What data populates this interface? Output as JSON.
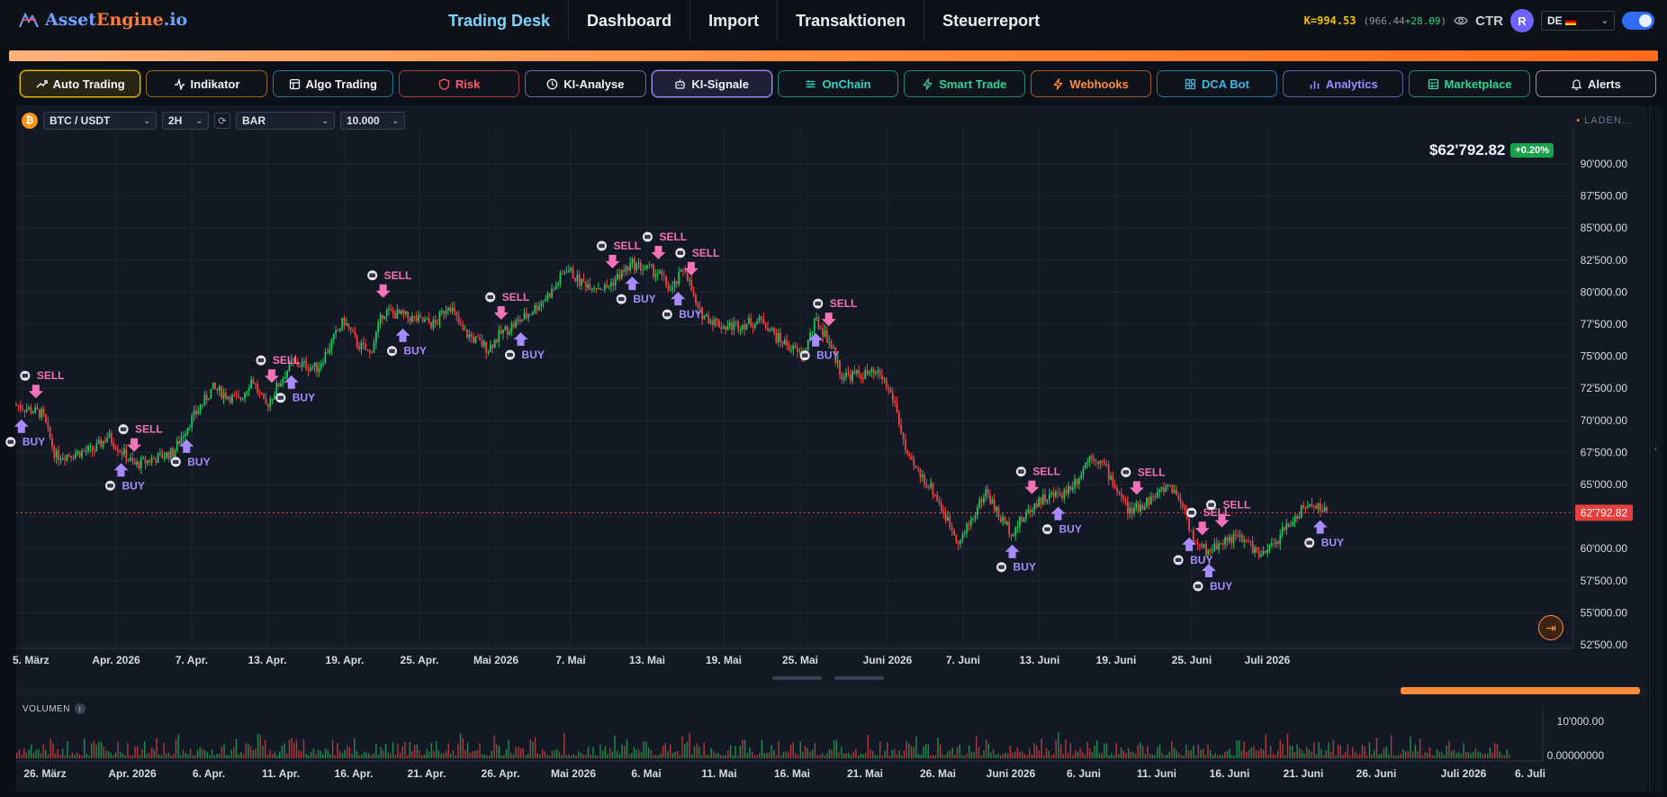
{
  "app": {
    "brand_part1": "Asset",
    "brand_part2": "Engine",
    "brand_part3": ".io"
  },
  "nav": {
    "items": [
      "Trading Desk",
      "Dashboard",
      "Import",
      "Transaktionen",
      "Steuerreport"
    ],
    "active": "Trading Desk"
  },
  "topbar_right": {
    "k_value": "K=994.53",
    "k_sub_base": "(966.44",
    "k_sub_delta": "+28.09",
    "k_sub_close": ")",
    "ctr_label": "CTR",
    "avatar_initial": "R",
    "language": "DE"
  },
  "features": [
    {
      "label": "Auto Trading",
      "icon": "trending-up-icon",
      "color": "#f0c000",
      "active": true
    },
    {
      "label": "Indikator",
      "icon": "activity-icon",
      "color": "#f4a020"
    },
    {
      "label": "Algo Trading",
      "icon": "layout-icon",
      "color": "#3fb6e8"
    },
    {
      "label": "Risk",
      "icon": "shield-icon",
      "color": "#ff5a6a"
    },
    {
      "label": "KI-Analyse",
      "icon": "clock-icon",
      "color": "#b79cff"
    },
    {
      "label": "KI-Signale",
      "icon": "robot-icon",
      "color": "#a58bff",
      "active": true
    },
    {
      "label": "OnChain",
      "icon": "sliders-icon",
      "color": "#2fd3c0"
    },
    {
      "label": "Smart Trade",
      "icon": "bolt-icon",
      "color": "#34d399"
    },
    {
      "label": "Webhooks",
      "icon": "bolt-icon",
      "color": "#ff8a3a"
    },
    {
      "label": "DCA Bot",
      "icon": "grid-icon",
      "color": "#3fb6e8"
    },
    {
      "label": "Analytics",
      "icon": "bar-chart-icon",
      "color": "#9b8cff"
    },
    {
      "label": "Marketplace",
      "icon": "table-icon",
      "color": "#34d399"
    },
    {
      "label": "Alerts",
      "icon": "bell-icon",
      "color": "#e6e9ef"
    }
  ],
  "chart_toolbar": {
    "pair": "BTC / USDT",
    "interval": "2H",
    "style": "BAR",
    "count": "10.000",
    "status": "LADEN..."
  },
  "price": {
    "last": "$62'792.82",
    "change": "+0.20%",
    "line_label": "62'792.82"
  },
  "chart_data": {
    "type": "candlestick",
    "pair": "BTC / USDT",
    "y_ticks": [
      "90'000.00",
      "87'500.00",
      "85'000.00",
      "82'500.00",
      "80'000.00",
      "77'500.00",
      "75'000.00",
      "72'500.00",
      "70'000.00",
      "67'500.00",
      "65'000.00",
      "62'500.00",
      "60'000.00",
      "57'500.00",
      "55'000.00",
      "52'500.00"
    ],
    "x_ticks": [
      "5. März",
      "Apr. 2026",
      "7. Apr.",
      "13. Apr.",
      "19. Apr.",
      "25. Apr.",
      "Mai 2026",
      "7. Mai",
      "13. Mai",
      "19. Mai",
      "25. Mai",
      "Juni 2026",
      "7. Juni",
      "13. Juni",
      "19. Juni",
      "25. Juni",
      "Juli 2026"
    ],
    "price_path": [
      {
        "t": 0.0,
        "p": 71200
      },
      {
        "t": 0.02,
        "p": 70500
      },
      {
        "t": 0.03,
        "p": 67200
      },
      {
        "t": 0.06,
        "p": 67700
      },
      {
        "t": 0.07,
        "p": 68800
      },
      {
        "t": 0.09,
        "p": 66500
      },
      {
        "t": 0.12,
        "p": 67500
      },
      {
        "t": 0.13,
        "p": 69500
      },
      {
        "t": 0.15,
        "p": 72500
      },
      {
        "t": 0.17,
        "p": 71500
      },
      {
        "t": 0.18,
        "p": 73300
      },
      {
        "t": 0.19,
        "p": 71000
      },
      {
        "t": 0.21,
        "p": 74500
      },
      {
        "t": 0.23,
        "p": 74100
      },
      {
        "t": 0.25,
        "p": 77800
      },
      {
        "t": 0.26,
        "p": 76000
      },
      {
        "t": 0.27,
        "p": 75200
      },
      {
        "t": 0.28,
        "p": 78500
      },
      {
        "t": 0.29,
        "p": 78300
      },
      {
        "t": 0.31,
        "p": 77700
      },
      {
        "t": 0.32,
        "p": 77500
      },
      {
        "t": 0.33,
        "p": 79200
      },
      {
        "t": 0.34,
        "p": 77000
      },
      {
        "t": 0.36,
        "p": 75600
      },
      {
        "t": 0.37,
        "p": 76800
      },
      {
        "t": 0.39,
        "p": 78200
      },
      {
        "t": 0.41,
        "p": 80200
      },
      {
        "t": 0.42,
        "p": 81900
      },
      {
        "t": 0.43,
        "p": 80800
      },
      {
        "t": 0.45,
        "p": 80300
      },
      {
        "t": 0.46,
        "p": 81300
      },
      {
        "t": 0.47,
        "p": 82200
      },
      {
        "t": 0.49,
        "p": 81500
      },
      {
        "t": 0.5,
        "p": 80000
      },
      {
        "t": 0.51,
        "p": 82000
      },
      {
        "t": 0.52,
        "p": 78500
      },
      {
        "t": 0.54,
        "p": 77300
      },
      {
        "t": 0.56,
        "p": 77600
      },
      {
        "t": 0.57,
        "p": 77800
      },
      {
        "t": 0.58,
        "p": 76500
      },
      {
        "t": 0.6,
        "p": 75000
      },
      {
        "t": 0.61,
        "p": 77800
      },
      {
        "t": 0.62,
        "p": 76300
      },
      {
        "t": 0.63,
        "p": 73500
      },
      {
        "t": 0.65,
        "p": 73600
      },
      {
        "t": 0.66,
        "p": 73500
      },
      {
        "t": 0.67,
        "p": 71500
      },
      {
        "t": 0.68,
        "p": 67000
      },
      {
        "t": 0.7,
        "p": 64500
      },
      {
        "t": 0.71,
        "p": 62300
      },
      {
        "t": 0.72,
        "p": 60500
      },
      {
        "t": 0.73,
        "p": 62500
      },
      {
        "t": 0.74,
        "p": 64500
      },
      {
        "t": 0.75,
        "p": 62500
      },
      {
        "t": 0.76,
        "p": 61300
      },
      {
        "t": 0.77,
        "p": 62600
      },
      {
        "t": 0.78,
        "p": 63800
      },
      {
        "t": 0.8,
        "p": 64400
      },
      {
        "t": 0.81,
        "p": 65500
      },
      {
        "t": 0.82,
        "p": 67400
      },
      {
        "t": 0.83,
        "p": 66500
      },
      {
        "t": 0.84,
        "p": 64600
      },
      {
        "t": 0.85,
        "p": 62800
      },
      {
        "t": 0.86,
        "p": 63500
      },
      {
        "t": 0.87,
        "p": 64200
      },
      {
        "t": 0.88,
        "p": 65000
      },
      {
        "t": 0.89,
        "p": 63500
      },
      {
        "t": 0.9,
        "p": 60200
      },
      {
        "t": 0.91,
        "p": 59800
      },
      {
        "t": 0.92,
        "p": 60600
      },
      {
        "t": 0.93,
        "p": 60900
      },
      {
        "t": 0.94,
        "p": 60500
      },
      {
        "t": 0.95,
        "p": 59300
      },
      {
        "t": 0.96,
        "p": 60400
      },
      {
        "t": 0.97,
        "p": 61800
      },
      {
        "t": 0.98,
        "p": 62900
      },
      {
        "t": 0.99,
        "p": 63600
      },
      {
        "t": 1.0,
        "p": 62793
      }
    ],
    "signals": [
      {
        "type": "SELL",
        "t": 0.015
      },
      {
        "type": "BUY",
        "t": 0.004
      },
      {
        "type": "BUY",
        "t": 0.08
      },
      {
        "type": "SELL",
        "t": 0.09
      },
      {
        "type": "BUY",
        "t": 0.13
      },
      {
        "type": "SELL",
        "t": 0.195
      },
      {
        "type": "BUY",
        "t": 0.21
      },
      {
        "type": "SELL",
        "t": 0.28
      },
      {
        "type": "BUY",
        "t": 0.295
      },
      {
        "type": "SELL",
        "t": 0.37
      },
      {
        "type": "BUY",
        "t": 0.385
      },
      {
        "type": "SELL",
        "t": 0.455
      },
      {
        "type": "BUY",
        "t": 0.47
      },
      {
        "type": "SELL",
        "t": 0.49
      },
      {
        "type": "BUY",
        "t": 0.505
      },
      {
        "type": "SELL",
        "t": 0.515
      },
      {
        "type": "SELL",
        "t": 0.62
      },
      {
        "type": "BUY",
        "t": 0.61
      },
      {
        "type": "BUY",
        "t": 0.76
      },
      {
        "type": "SELL",
        "t": 0.775
      },
      {
        "type": "BUY",
        "t": 0.795
      },
      {
        "type": "SELL",
        "t": 0.855
      },
      {
        "type": "BUY",
        "t": 0.895
      },
      {
        "type": "SELL",
        "t": 0.905
      },
      {
        "type": "BUY",
        "t": 0.91
      },
      {
        "type": "SELL",
        "t": 0.92
      },
      {
        "type": "BUY",
        "t": 0.995
      }
    ],
    "signal_labels": {
      "buy": "BUY",
      "sell": "SELL"
    },
    "volume_label": "VOLUMEN",
    "volume_ticks": [
      "10'000.00",
      "0.00000000"
    ],
    "volume_x_ticks": [
      "26. März",
      "Apr. 2026",
      "6. Apr.",
      "11. Apr.",
      "16. Apr.",
      "21. Apr.",
      "26. Apr.",
      "Mai 2026",
      "6. Mai",
      "11. Mai",
      "16. Mai",
      "21. Mai",
      "26. Mai",
      "Juni 2026",
      "6. Juni",
      "11. Juni",
      "16. Juni",
      "21. Juni",
      "26. Juni",
      "Juli 2026",
      "6. Juli"
    ],
    "colors": {
      "up": "#22c55e",
      "down": "#ef4444",
      "buy": "#a78bfa",
      "sell": "#f472b6",
      "price_line": "#ef4444"
    }
  }
}
